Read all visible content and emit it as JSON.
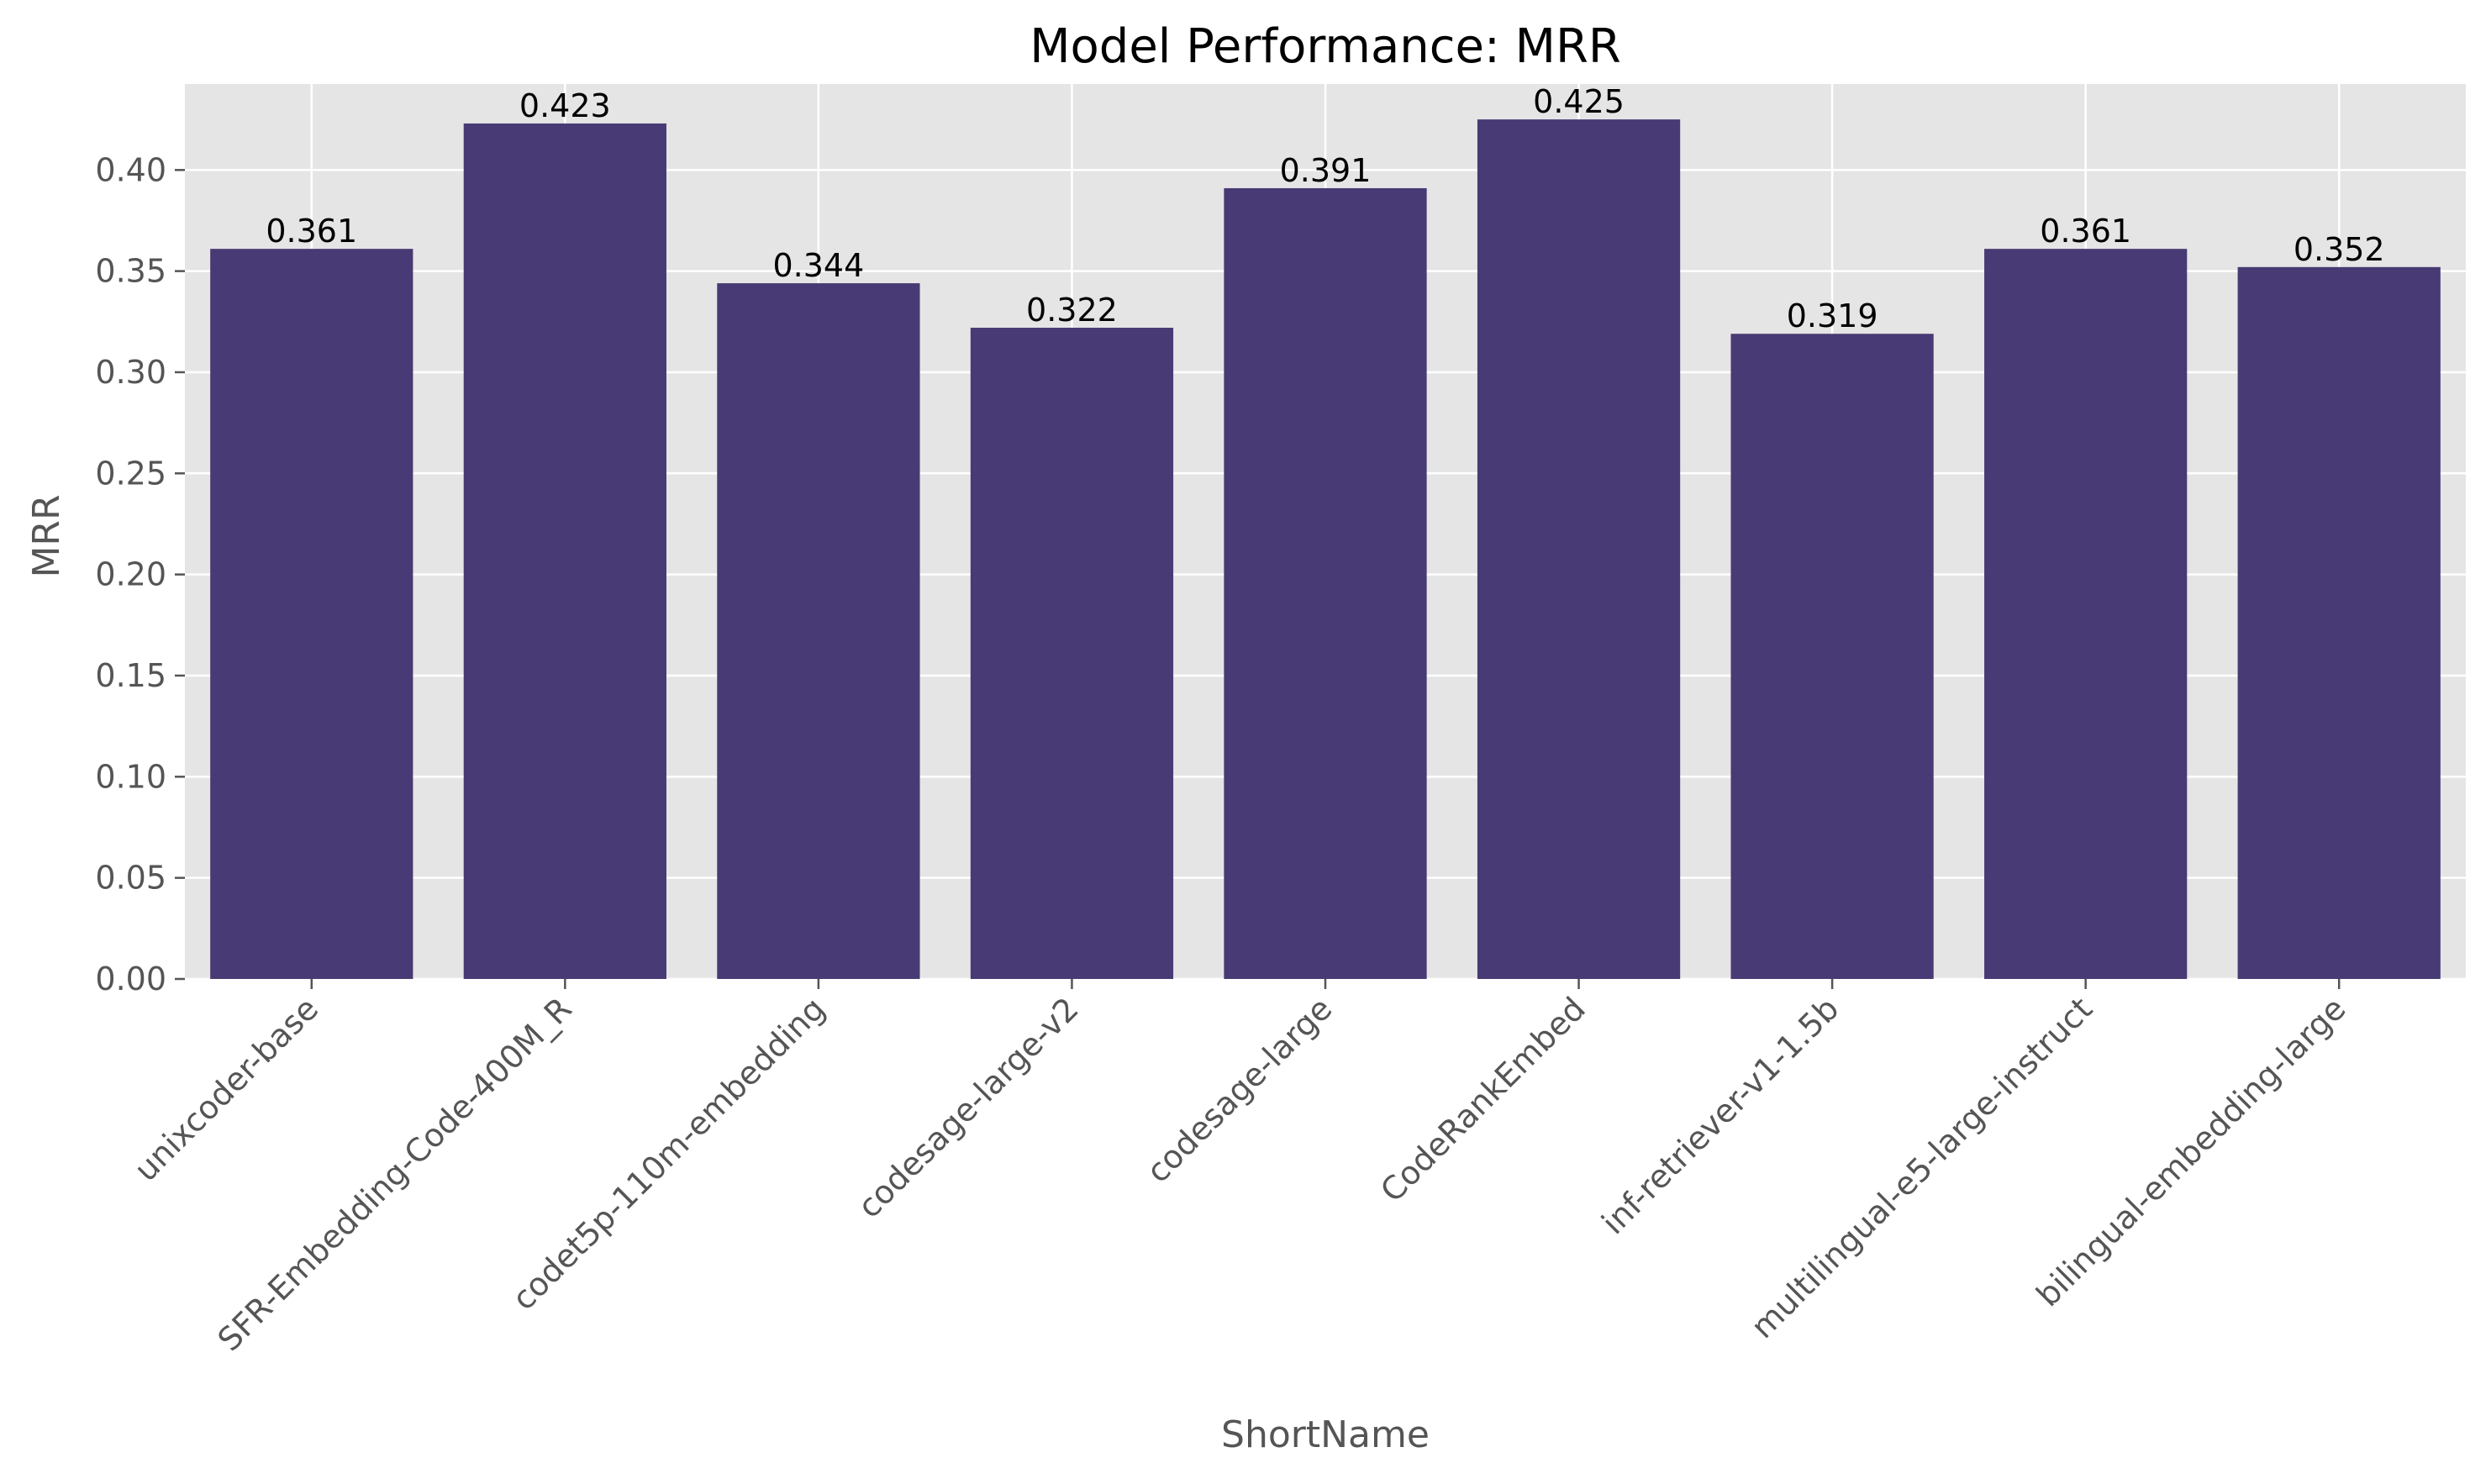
{
  "chart_data": {
    "type": "bar",
    "title": "Model Performance: MRR",
    "xlabel": "ShortName",
    "ylabel": "MRR",
    "categories": [
      "unixcoder-base",
      "SFR-Embedding-Code-400M_R",
      "codet5p-110m-embedding",
      "codesage-large-v2",
      "codesage-large",
      "CodeRankEmbed",
      "inf-retriever-v1-1.5b",
      "multilingual-e5-large-instruct",
      "bilingual-embedding-large"
    ],
    "values": [
      0.361,
      0.423,
      0.344,
      0.322,
      0.391,
      0.425,
      0.319,
      0.361,
      0.352
    ],
    "value_labels": [
      "0.361",
      "0.423",
      "0.344",
      "0.322",
      "0.391",
      "0.425",
      "0.319",
      "0.361",
      "0.352"
    ],
    "ylim": [
      0,
      0.4425
    ],
    "yticks": [
      0.0,
      0.05,
      0.1,
      0.15,
      0.2,
      0.25,
      0.3,
      0.35,
      0.4
    ],
    "ytick_labels": [
      "0.00",
      "0.05",
      "0.10",
      "0.15",
      "0.20",
      "0.25",
      "0.30",
      "0.35",
      "0.40"
    ],
    "grid": true,
    "colors": {
      "bar": "#483a74",
      "plot_background": "#e5e5e5",
      "grid": "#ffffff"
    }
  }
}
